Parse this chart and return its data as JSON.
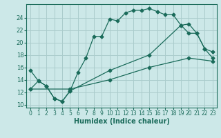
{
  "title": "",
  "xlabel": "Humidex (Indice chaleur)",
  "bg_color": "#cce8e8",
  "grid_color": "#aacccc",
  "line_color": "#1a6b5a",
  "xlim": [
    -0.5,
    23.5
  ],
  "ylim": [
    9.5,
    26.2
  ],
  "xticks": [
    0,
    1,
    2,
    3,
    4,
    5,
    6,
    7,
    8,
    9,
    10,
    11,
    12,
    13,
    14,
    15,
    16,
    17,
    18,
    19,
    20,
    21,
    22,
    23
  ],
  "yticks": [
    10,
    12,
    14,
    16,
    18,
    20,
    22,
    24
  ],
  "line1_x": [
    0,
    1,
    2,
    3,
    4,
    5,
    6,
    7,
    8,
    9,
    10,
    11,
    12,
    13,
    14,
    15,
    16,
    17,
    18,
    19,
    20,
    21,
    22,
    23
  ],
  "line1_y": [
    15.5,
    13.8,
    13.0,
    11.0,
    10.5,
    12.2,
    15.2,
    17.5,
    21.0,
    21.0,
    23.8,
    23.5,
    24.8,
    25.2,
    25.2,
    25.5,
    25.0,
    24.5,
    24.5,
    22.8,
    23.0,
    21.5,
    19.0,
    18.5
  ],
  "line2_x": [
    0,
    1,
    2,
    3,
    4,
    5,
    10,
    15,
    19,
    20,
    21,
    22,
    23
  ],
  "line2_y": [
    12.5,
    13.8,
    13.0,
    11.0,
    10.5,
    12.2,
    15.5,
    18.0,
    22.8,
    21.5,
    21.5,
    19.0,
    17.5
  ],
  "line3_x": [
    0,
    5,
    10,
    15,
    20,
    23
  ],
  "line3_y": [
    12.5,
    12.5,
    14.0,
    16.0,
    17.5,
    17.0
  ]
}
